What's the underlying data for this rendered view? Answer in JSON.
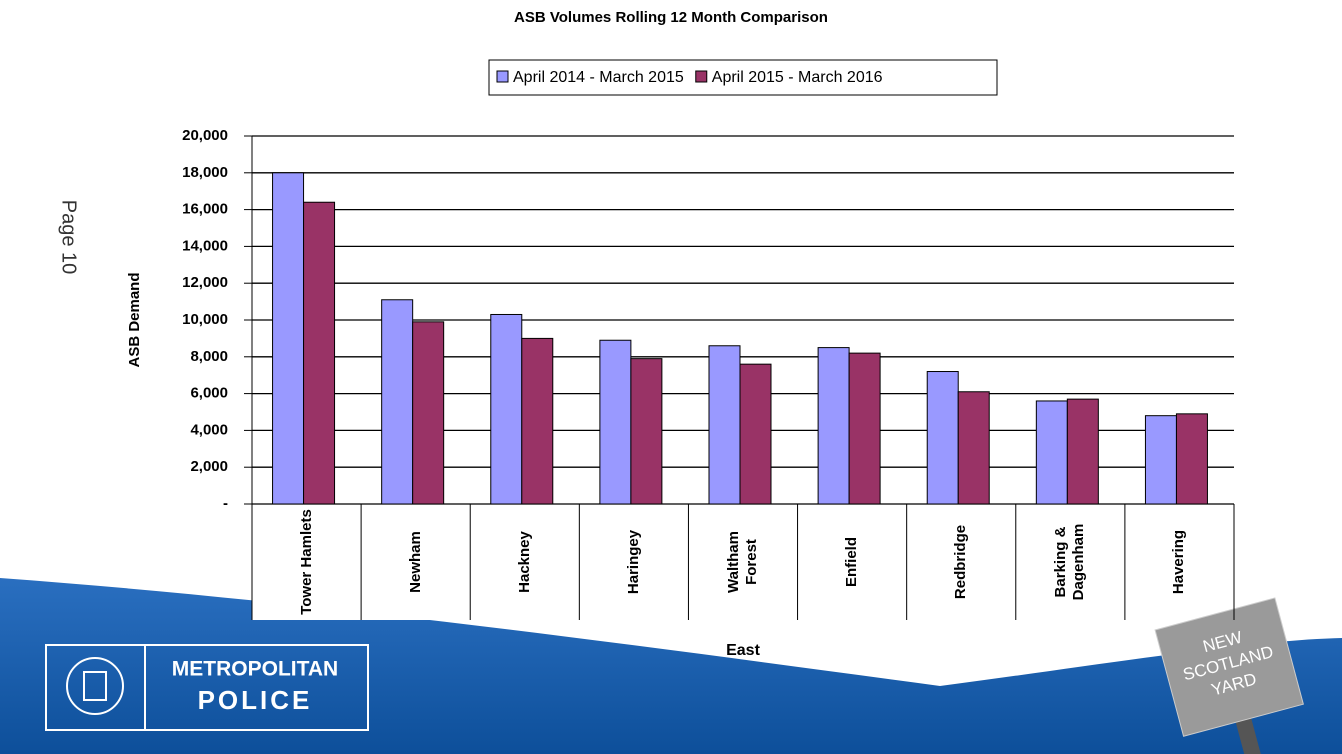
{
  "page_label": "Page 10",
  "logo": {
    "line1": "METROPOLITAN",
    "line2": "POLICE"
  },
  "sign": {
    "line1": "NEW",
    "line2": "SCOTLAND",
    "line3": "YARD"
  },
  "chart_data": {
    "type": "bar",
    "title": "ASB Volumes Rolling 12 Month Comparison",
    "y_label": "ASB Demand",
    "x_label": "East",
    "categories": [
      "Tower Hamlets",
      "Newham",
      "Hackney",
      "Haringey",
      "Waltham Forest",
      "Enfield",
      "Redbridge",
      "Barking & Dagenham",
      "Havering"
    ],
    "series": [
      {
        "name": "April 2014 - March 2015",
        "color": "#9999ff",
        "values": [
          18000,
          11100,
          10300,
          8900,
          8600,
          8500,
          7200,
          5600,
          4800
        ]
      },
      {
        "name": "April 2015 - March 2016",
        "color": "#993366",
        "values": [
          16400,
          9900,
          9000,
          7900,
          7600,
          8200,
          6100,
          5700,
          4900
        ]
      }
    ],
    "ylim": [
      0,
      20000
    ],
    "yticks": [
      {
        "value": 0,
        "label": "-"
      },
      {
        "value": 2000,
        "label": "2,000"
      },
      {
        "value": 4000,
        "label": "4,000"
      },
      {
        "value": 6000,
        "label": "6,000"
      },
      {
        "value": 8000,
        "label": "8,000"
      },
      {
        "value": 10000,
        "label": "10,000"
      },
      {
        "value": 12000,
        "label": "12,000"
      },
      {
        "value": 14000,
        "label": "14,000"
      },
      {
        "value": 16000,
        "label": "16,000"
      },
      {
        "value": 18000,
        "label": "18,000"
      },
      {
        "value": 20000,
        "label": "20,000"
      }
    ],
    "grid": true,
    "legend": "top"
  }
}
